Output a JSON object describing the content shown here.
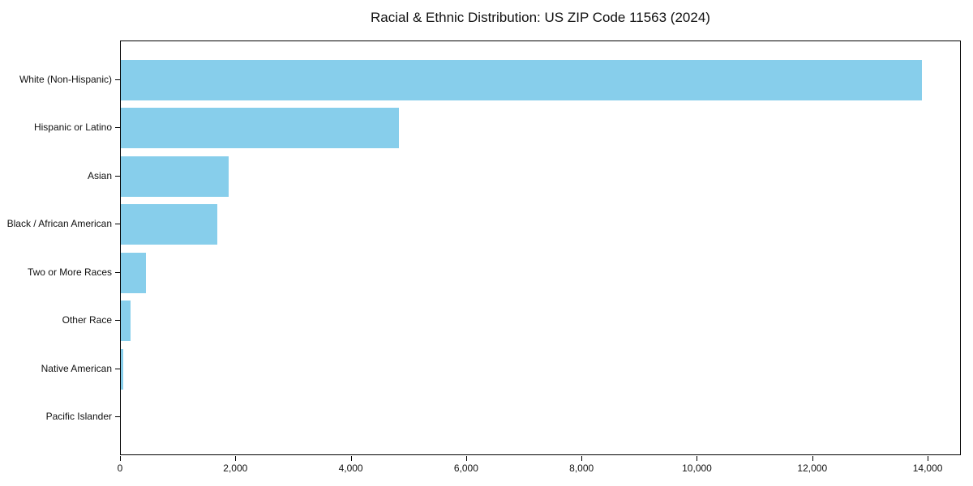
{
  "chart_data": {
    "type": "bar",
    "orientation": "horizontal",
    "title": "Racial & Ethnic Distribution: US ZIP Code 11563 (2024)",
    "categories": [
      "White (Non-Hispanic)",
      "Hispanic or Latino",
      "Asian",
      "Black / African American",
      "Two or More Races",
      "Other Race",
      "Native American",
      "Pacific Islander"
    ],
    "values": [
      13880,
      4820,
      1870,
      1670,
      435,
      170,
      40,
      0
    ],
    "xlabel": "",
    "ylabel": "",
    "xlim": [
      0,
      14575
    ],
    "xticks": [
      0,
      2000,
      4000,
      6000,
      8000,
      10000,
      12000,
      14000
    ],
    "xtick_labels": [
      "0",
      "2,000",
      "4,000",
      "6,000",
      "8,000",
      "10,000",
      "12,000",
      "14,000"
    ],
    "grid": false,
    "legend": false,
    "bar_color": "#87CEEB",
    "text_color": "#111111",
    "spine_color": "#000000"
  }
}
